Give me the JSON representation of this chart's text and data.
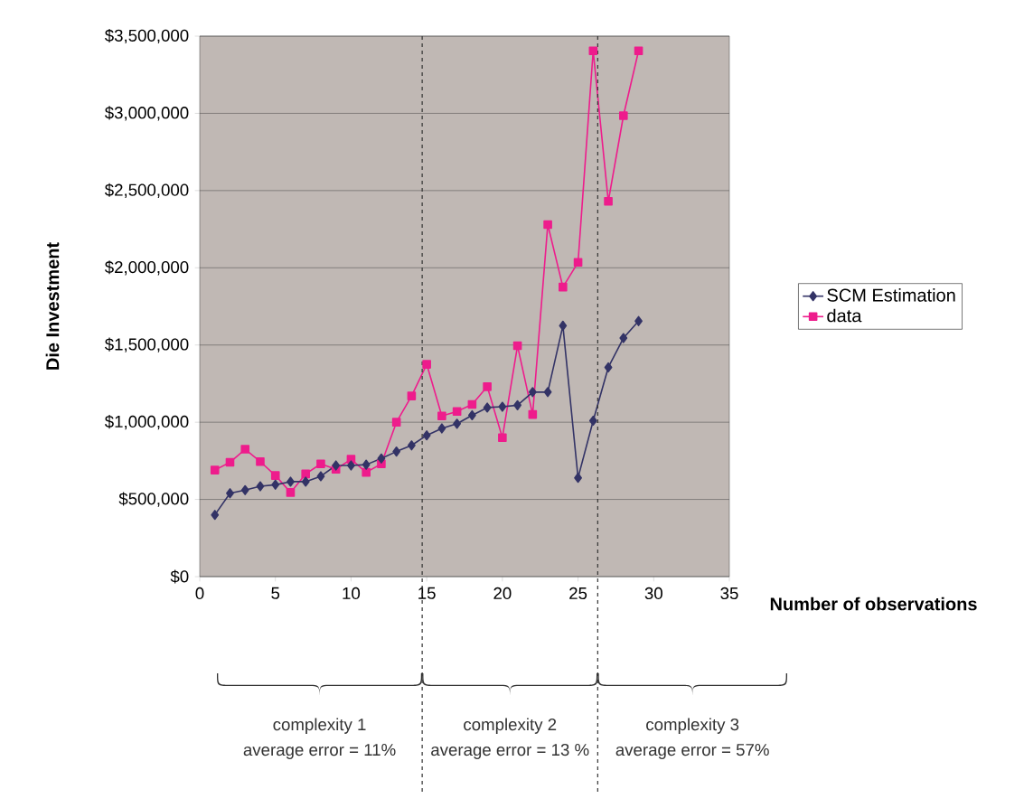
{
  "chart_data": {
    "type": "line",
    "xlabel": "Number of observations",
    "ylabel": "Die Investment",
    "x": [
      1,
      2,
      3,
      4,
      5,
      6,
      7,
      8,
      9,
      10,
      11,
      12,
      13,
      14,
      15,
      16,
      17,
      18,
      19,
      20,
      21,
      22,
      23,
      24,
      25,
      26,
      27,
      28,
      29
    ],
    "series": [
      {
        "name": "SCM Estimation",
        "color": "#333366",
        "marker": "diamond",
        "values": [
          400000,
          540000,
          560000,
          585000,
          595000,
          615000,
          615000,
          650000,
          720000,
          720000,
          725000,
          765000,
          810000,
          850000,
          915000,
          960000,
          990000,
          1045000,
          1095000,
          1100000,
          1110000,
          1195000,
          1195000,
          1625000,
          640000,
          1010000,
          1355000,
          1545000,
          1655000
        ]
      },
      {
        "name": "data",
        "color": "#ee1c8c",
        "marker": "square",
        "values": [
          690000,
          740000,
          825000,
          745000,
          655000,
          545000,
          665000,
          730000,
          695000,
          760000,
          675000,
          730000,
          1000000,
          1170000,
          1375000,
          1040000,
          1070000,
          1115000,
          1230000,
          900000,
          1495000,
          1050000,
          2280000,
          1875000,
          2035000,
          3405000,
          2430000,
          2985000,
          3405000
        ]
      }
    ],
    "xlim": [
      0,
      35
    ],
    "xticks": [
      0,
      5,
      10,
      15,
      20,
      25,
      30,
      35
    ],
    "ylim": [
      0,
      3500000
    ],
    "yticks": [
      {
        "value": 0,
        "label": "$0"
      },
      {
        "value": 500000,
        "label": "$500,000"
      },
      {
        "value": 1000000,
        "label": "$1,000,000"
      },
      {
        "value": 1500000,
        "label": "$1,500,000"
      },
      {
        "value": 2000000,
        "label": "$2,000,000"
      },
      {
        "value": 2500000,
        "label": "$2,500,000"
      },
      {
        "value": 3000000,
        "label": "$3,000,000"
      },
      {
        "value": 3500000,
        "label": "$3,500,000"
      }
    ],
    "grid": "y",
    "legend": "right",
    "line_style": "solid",
    "ref_lines": [
      {
        "axis": "x",
        "value": 14.7,
        "line_style": "dashed"
      },
      {
        "axis": "x",
        "value": 26.3,
        "line_style": "dashed"
      }
    ],
    "annotations": [
      "complexity 1",
      "average error  = 11%",
      "complexity 2",
      "average error = 13 %",
      "complexity 3",
      "average error = 57%"
    ]
  }
}
